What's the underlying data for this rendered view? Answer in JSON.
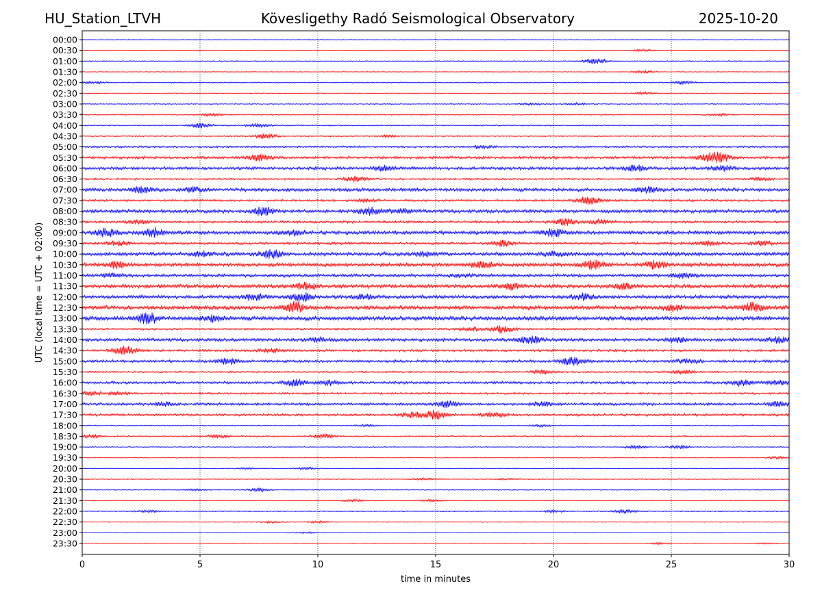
{
  "header": {
    "station": "HU_Station_LTVH",
    "observatory": "Kövesligethy Radó Seismological Observatory",
    "date": "2025-10-20"
  },
  "chart_data": {
    "type": "line",
    "title": "Kövesligethy Radó Seismological Observatory",
    "xlabel": "time in minutes",
    "ylabel": "UTC (local time = UTC + 02:00)",
    "xlim": [
      0,
      30
    ],
    "xticks": [
      0,
      5,
      10,
      15,
      20,
      25,
      30
    ],
    "grid": "vertical dotted lines at 5-minute ticks",
    "trace_colors": [
      "#0000ff",
      "#ff0000"
    ],
    "rows": [
      {
        "label": "00:00",
        "amp": 0.5,
        "bursts": []
      },
      {
        "label": "00:30",
        "amp": 0.5,
        "bursts": [
          [
            23.8,
            1.5
          ]
        ]
      },
      {
        "label": "01:00",
        "amp": 0.8,
        "bursts": [
          [
            21.8,
            4
          ]
        ]
      },
      {
        "label": "01:30",
        "amp": 0.6,
        "bursts": [
          [
            23.8,
            2
          ]
        ]
      },
      {
        "label": "02:00",
        "amp": 0.9,
        "bursts": [
          [
            0.5,
            1.5
          ],
          [
            25.5,
            2
          ]
        ]
      },
      {
        "label": "02:30",
        "amp": 0.6,
        "bursts": [
          [
            23.8,
            2
          ]
        ]
      },
      {
        "label": "03:00",
        "amp": 0.8,
        "bursts": [
          [
            19,
            1.5
          ],
          [
            21,
            1.5
          ]
        ]
      },
      {
        "label": "03:30",
        "amp": 0.9,
        "bursts": [
          [
            5.5,
            2
          ],
          [
            27,
            1.5
          ]
        ]
      },
      {
        "label": "04:00",
        "amp": 1.0,
        "bursts": [
          [
            5,
            3.5
          ],
          [
            7.5,
            2.5
          ]
        ]
      },
      {
        "label": "04:30",
        "amp": 1.0,
        "bursts": [
          [
            7.8,
            3.5
          ],
          [
            13,
            1.5
          ]
        ]
      },
      {
        "label": "05:00",
        "amp": 1.6,
        "bursts": [
          [
            17,
            1.5
          ]
        ]
      },
      {
        "label": "05:30",
        "amp": 2.2,
        "bursts": [
          [
            7.5,
            4.5
          ],
          [
            27,
            7
          ],
          [
            26.5,
            3
          ]
        ]
      },
      {
        "label": "06:00",
        "amp": 2.5,
        "bursts": [
          [
            12.8,
            3.5
          ],
          [
            23.5,
            4
          ],
          [
            27.2,
            3.5
          ]
        ]
      },
      {
        "label": "06:30",
        "amp": 1.5,
        "bursts": [
          [
            11.6,
            4
          ],
          [
            28.7,
            2.5
          ]
        ]
      },
      {
        "label": "07:00",
        "amp": 2.8,
        "bursts": [
          [
            2.5,
            4
          ],
          [
            4.7,
            3
          ],
          [
            24,
            4
          ]
        ]
      },
      {
        "label": "07:30",
        "amp": 1.8,
        "bursts": [
          [
            21.5,
            6
          ],
          [
            12,
            2
          ]
        ]
      },
      {
        "label": "08:00",
        "amp": 2.8,
        "bursts": [
          [
            7.7,
            6
          ],
          [
            12.2,
            5
          ],
          [
            13.5,
            3
          ]
        ]
      },
      {
        "label": "08:30",
        "amp": 2.0,
        "bursts": [
          [
            2.4,
            2.5
          ],
          [
            20.5,
            4.5
          ],
          [
            22,
            3
          ]
        ]
      },
      {
        "label": "09:00",
        "amp": 3.0,
        "bursts": [
          [
            3,
            6
          ],
          [
            1,
            5
          ],
          [
            20,
            5
          ],
          [
            9,
            3
          ]
        ]
      },
      {
        "label": "09:30",
        "amp": 2.0,
        "bursts": [
          [
            1.5,
            3
          ],
          [
            17.8,
            4
          ],
          [
            26.5,
            3
          ],
          [
            28.8,
            3
          ]
        ]
      },
      {
        "label": "10:00",
        "amp": 3.0,
        "bursts": [
          [
            8,
            5.5
          ],
          [
            5,
            3
          ],
          [
            14.5,
            3
          ],
          [
            20,
            3
          ]
        ]
      },
      {
        "label": "10:30",
        "amp": 3.0,
        "bursts": [
          [
            1.5,
            5
          ],
          [
            21.7,
            6.5
          ],
          [
            24.3,
            5
          ],
          [
            17,
            4
          ]
        ]
      },
      {
        "label": "11:00",
        "amp": 2.5,
        "bursts": [
          [
            1.2,
            3
          ],
          [
            25.5,
            3.5
          ],
          [
            16,
            2
          ]
        ]
      },
      {
        "label": "11:30",
        "amp": 3.0,
        "bursts": [
          [
            9.5,
            5
          ],
          [
            18.2,
            4
          ],
          [
            23,
            4
          ]
        ]
      },
      {
        "label": "12:00",
        "amp": 2.8,
        "bursts": [
          [
            9.3,
            6
          ],
          [
            7.3,
            4
          ],
          [
            21.3,
            4
          ],
          [
            12,
            3
          ]
        ]
      },
      {
        "label": "12:30",
        "amp": 3.2,
        "bursts": [
          [
            9,
            7
          ],
          [
            25,
            4
          ],
          [
            28.5,
            7
          ]
        ]
      },
      {
        "label": "13:00",
        "amp": 3.5,
        "bursts": [
          [
            2.8,
            7
          ],
          [
            5.5,
            4
          ]
        ]
      },
      {
        "label": "13:30",
        "amp": 1.6,
        "bursts": [
          [
            17.8,
            5.5
          ],
          [
            16.5,
            2.5
          ]
        ]
      },
      {
        "label": "14:00",
        "amp": 2.6,
        "bursts": [
          [
            19,
            5.5
          ],
          [
            29.5,
            3.5
          ],
          [
            25.2,
            3.5
          ],
          [
            10,
            3
          ]
        ]
      },
      {
        "label": "14:30",
        "amp": 2.0,
        "bursts": [
          [
            1.8,
            6
          ],
          [
            8,
            2.5
          ]
        ]
      },
      {
        "label": "15:00",
        "amp": 2.2,
        "bursts": [
          [
            20.8,
            6
          ],
          [
            6.2,
            4
          ],
          [
            25.7,
            3
          ]
        ]
      },
      {
        "label": "15:30",
        "amp": 1.5,
        "bursts": [
          [
            19.5,
            2.5
          ],
          [
            25.5,
            2.5
          ]
        ]
      },
      {
        "label": "16:00",
        "amp": 2.2,
        "bursts": [
          [
            9,
            4.5
          ],
          [
            10.5,
            3
          ],
          [
            28,
            4
          ],
          [
            29.5,
            3
          ]
        ]
      },
      {
        "label": "16:30",
        "amp": 1.6,
        "bursts": [
          [
            0.3,
            3
          ],
          [
            1.5,
            2
          ]
        ]
      },
      {
        "label": "17:00",
        "amp": 2.2,
        "bursts": [
          [
            15.5,
            4.5
          ],
          [
            19.5,
            3
          ],
          [
            29.5,
            3
          ],
          [
            3.5,
            2.5
          ]
        ]
      },
      {
        "label": "17:30",
        "amp": 2.0,
        "bursts": [
          [
            15,
            6.5
          ],
          [
            14,
            3.5
          ],
          [
            17.5,
            3
          ]
        ]
      },
      {
        "label": "18:00",
        "amp": 0.8,
        "bursts": [
          [
            19.5,
            1.5
          ],
          [
            12,
            1.5
          ]
        ]
      },
      {
        "label": "18:30",
        "amp": 1.2,
        "bursts": [
          [
            10.3,
            3
          ],
          [
            5.7,
            2.5
          ],
          [
            0.3,
            2
          ]
        ]
      },
      {
        "label": "19:00",
        "amp": 0.8,
        "bursts": [
          [
            23.5,
            2.5
          ],
          [
            25.3,
            2.5
          ]
        ]
      },
      {
        "label": "19:30",
        "amp": 0.6,
        "bursts": [
          [
            29.5,
            1.5
          ]
        ]
      },
      {
        "label": "20:00",
        "amp": 0.6,
        "bursts": [
          [
            9.5,
            1.5
          ],
          [
            7,
            1
          ]
        ]
      },
      {
        "label": "20:30",
        "amp": 0.6,
        "bursts": [
          [
            14.5,
            1.5
          ],
          [
            18,
            1
          ]
        ]
      },
      {
        "label": "21:00",
        "amp": 0.7,
        "bursts": [
          [
            7.5,
            2.5
          ],
          [
            4.8,
            1.5
          ]
        ]
      },
      {
        "label": "21:30",
        "amp": 0.6,
        "bursts": [
          [
            11.5,
            2
          ],
          [
            14.8,
            1.5
          ]
        ]
      },
      {
        "label": "22:00",
        "amp": 0.8,
        "bursts": [
          [
            23,
            2.5
          ],
          [
            2.8,
            1.5
          ],
          [
            20,
            1.5
          ]
        ]
      },
      {
        "label": "22:30",
        "amp": 0.6,
        "bursts": [
          [
            8,
            1.5
          ],
          [
            10,
            1.5
          ]
        ]
      },
      {
        "label": "23:00",
        "amp": 0.5,
        "bursts": [
          [
            9.5,
            1
          ]
        ]
      },
      {
        "label": "23:30",
        "amp": 0.6,
        "bursts": [
          [
            24.5,
            1.2
          ],
          [
            29,
            1
          ]
        ]
      }
    ]
  }
}
